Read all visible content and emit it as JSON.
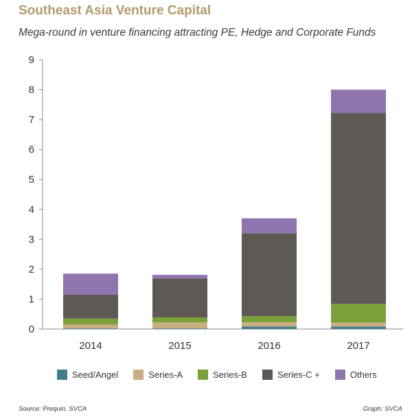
{
  "chart_data": {
    "type": "bar",
    "stacked": true,
    "title": "Southeast Asia Venture Capital",
    "subtitle": "Mega-round in venture financing attracting PE, Hedge and Corporate Funds",
    "categories": [
      "2014",
      "2015",
      "2016",
      "2017"
    ],
    "series": [
      {
        "name": "Seed/Angel",
        "color": "#3f7f8a",
        "values": [
          0.02,
          0.02,
          0.08,
          0.08
        ]
      },
      {
        "name": "Series-A",
        "color": "#c9ae82",
        "values": [
          0.13,
          0.2,
          0.15,
          0.14
        ]
      },
      {
        "name": "Series-B",
        "color": "#7aa03a",
        "values": [
          0.2,
          0.17,
          0.2,
          0.62
        ]
      },
      {
        "name": "Series-C +",
        "color": "#5e5955",
        "values": [
          0.8,
          1.3,
          2.77,
          6.38
        ]
      },
      {
        "name": "Others",
        "color": "#8f74ad",
        "values": [
          0.7,
          0.12,
          0.5,
          0.78
        ]
      }
    ],
    "ylim": [
      0,
      9
    ],
    "yticks": [
      "0",
      "1",
      "2",
      "3",
      "4",
      "5",
      "6",
      "7",
      "8",
      "9"
    ],
    "grid": false,
    "legend_position": "bottom"
  },
  "footer": {
    "source": "Source: Prequin, SVCA",
    "graph": "Graph: SVCA"
  }
}
